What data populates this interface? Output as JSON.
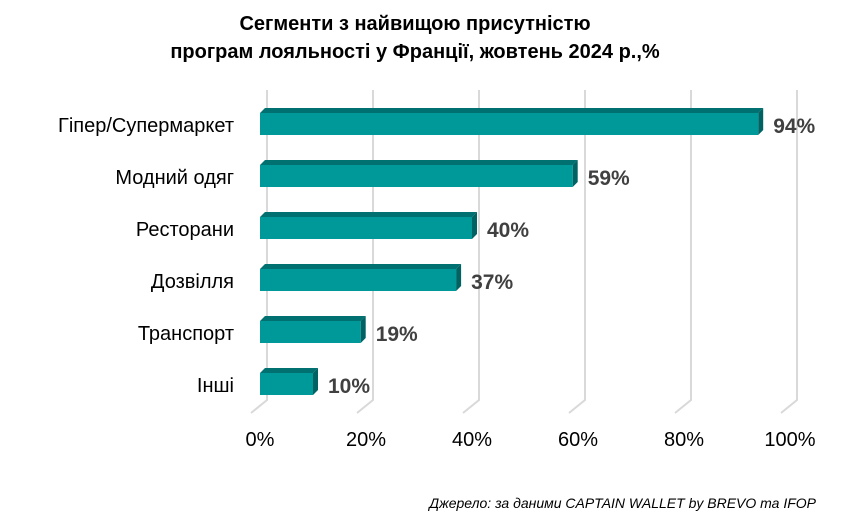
{
  "chart_data": {
    "type": "bar",
    "orientation": "horizontal",
    "title_line1": "Сегменти з найвищою присутністю",
    "title_line2": "програм лояльності у Франції, жовтень 2024 р.,%",
    "categories": [
      "Гіпер/Супермаркет",
      "Модний одяг",
      "Ресторани",
      "Дозвілля",
      "Транспорт",
      "Інші"
    ],
    "values": [
      94,
      59,
      40,
      37,
      19,
      10
    ],
    "data_labels": [
      "94%",
      "59%",
      "40%",
      "37%",
      "19%",
      "10%"
    ],
    "xticks": [
      "0%",
      "20%",
      "40%",
      "60%",
      "80%",
      "100%"
    ],
    "xlim": [
      0,
      100
    ],
    "grid": true,
    "colors": {
      "face": "#009999",
      "top": "#007070",
      "side": "#006262",
      "label": "#404040",
      "grid": "#d9d9d9"
    }
  },
  "source": "Джерело: за даними CAPTAIN WALLET by BREVO та IFOP"
}
